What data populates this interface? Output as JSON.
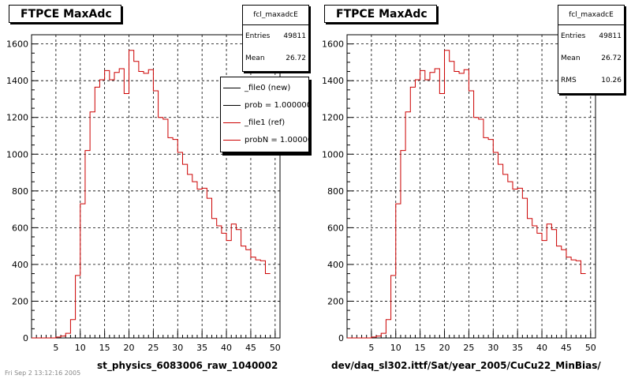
{
  "chart_data": [
    {
      "type": "histogram",
      "title": "FTPCE MaxAdc",
      "xlabel": "st_physics_6083006_raw_1040002",
      "xlim": [
        0,
        51
      ],
      "ylim": [
        0,
        1650
      ],
      "xticks": [
        5,
        10,
        15,
        20,
        25,
        30,
        35,
        40,
        45,
        50
      ],
      "yticks": [
        0,
        200,
        400,
        600,
        800,
        1000,
        1200,
        1400,
        1600
      ],
      "grid": true,
      "stats": {
        "name": "fcl_maxadcE",
        "rows": [
          {
            "label": "Entries",
            "value": "49811"
          },
          {
            "label": "Mean",
            "value": "26.72"
          }
        ]
      },
      "legend": [
        {
          "label": "_file0 (new)",
          "color": "#000000"
        },
        {
          "label": "prob = 1.000000",
          "color": "#000000"
        },
        {
          "label": "_file1 (ref)",
          "color": "#cc0000"
        },
        {
          "label": "probN = 1.000000",
          "color": "#cc0000"
        }
      ],
      "bin_width": 1,
      "series": [
        {
          "color": "#cc0000",
          "values": [
            0,
            0,
            0,
            0,
            0,
            5,
            10,
            25,
            100,
            340,
            730,
            1020,
            1230,
            1365,
            1405,
            1455,
            1405,
            1445,
            1465,
            1330,
            1565,
            1505,
            1450,
            1440,
            1460,
            1345,
            1200,
            1190,
            1090,
            1080,
            1010,
            945,
            890,
            850,
            810,
            815,
            760,
            650,
            610,
            570,
            530,
            620,
            590,
            500,
            480,
            440,
            425,
            420,
            350
          ]
        }
      ]
    },
    {
      "type": "histogram",
      "title": "FTPCE MaxAdc",
      "xlabel": "dev/daq_sl302.ittf/Sat/year_2005/CuCu22_MinBias/",
      "xlim": [
        0,
        51
      ],
      "ylim": [
        0,
        1650
      ],
      "xticks": [
        5,
        10,
        15,
        20,
        25,
        30,
        35,
        40,
        45,
        50
      ],
      "yticks": [
        0,
        200,
        400,
        600,
        800,
        1000,
        1200,
        1400,
        1600
      ],
      "grid": true,
      "stats": {
        "name": "fcl_maxadcE",
        "rows": [
          {
            "label": "Entries",
            "value": "49811"
          },
          {
            "label": "Mean",
            "value": "26.72"
          },
          {
            "label": "RMS",
            "value": "10.26"
          }
        ]
      },
      "bin_width": 1,
      "series": [
        {
          "color": "#cc0000",
          "values": [
            0,
            0,
            0,
            0,
            0,
            5,
            10,
            25,
            100,
            340,
            730,
            1020,
            1230,
            1365,
            1405,
            1455,
            1405,
            1445,
            1465,
            1330,
            1565,
            1505,
            1450,
            1440,
            1460,
            1345,
            1200,
            1190,
            1090,
            1080,
            1010,
            945,
            890,
            850,
            810,
            815,
            760,
            650,
            610,
            570,
            530,
            620,
            590,
            500,
            480,
            440,
            425,
            420,
            350
          ]
        }
      ]
    }
  ],
  "footer": "Fri Sep 2 13:12:16 2005"
}
